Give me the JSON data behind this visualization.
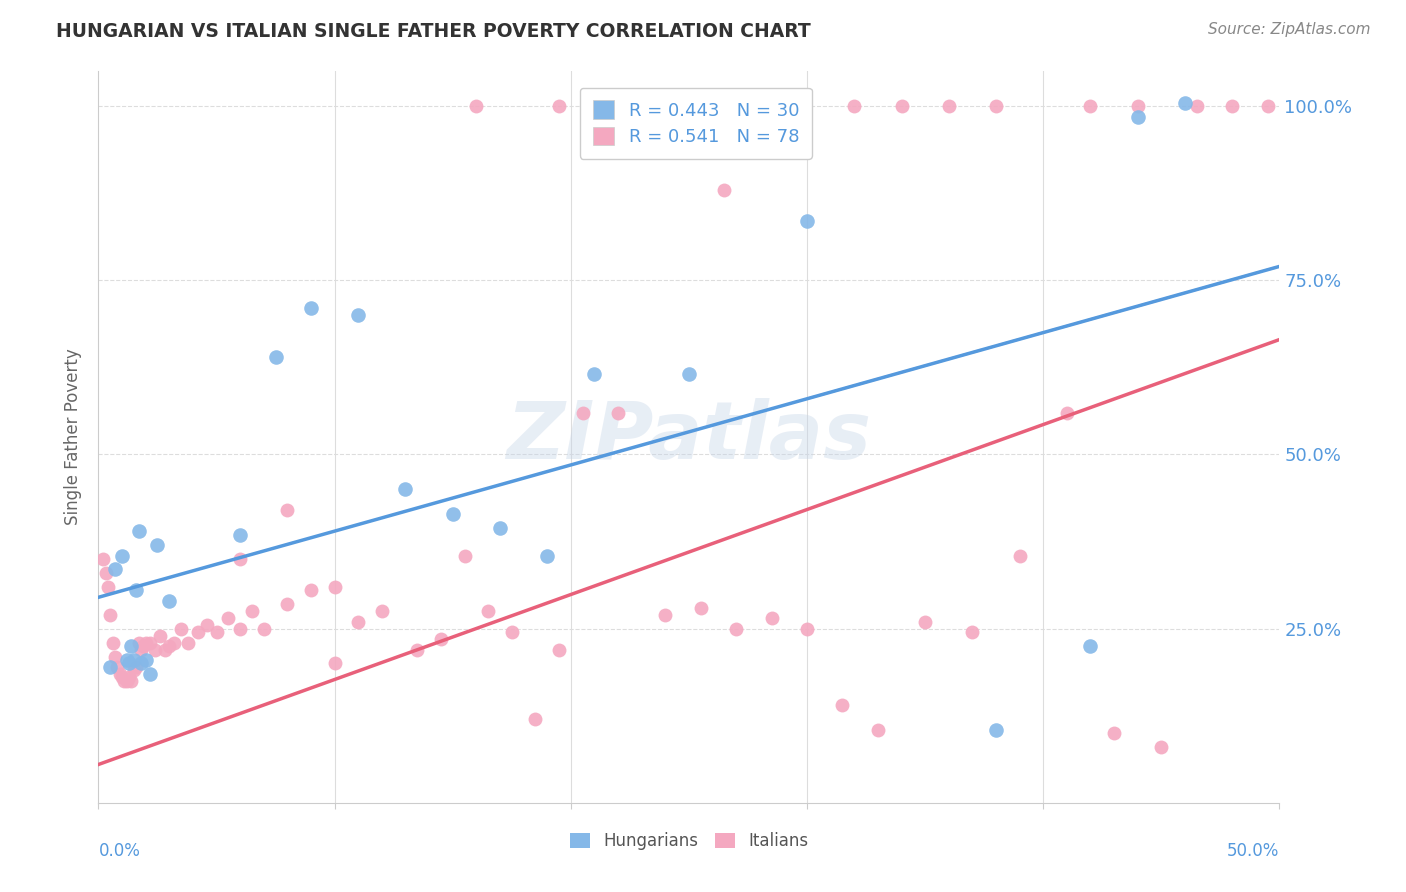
{
  "title": "HUNGARIAN VS ITALIAN SINGLE FATHER POVERTY CORRELATION CHART",
  "source": "Source: ZipAtlas.com",
  "ylabel": "Single Father Poverty",
  "xlim": [
    0.0,
    0.5
  ],
  "ylim": [
    0.0,
    1.05
  ],
  "yticks": [
    0.0,
    0.25,
    0.5,
    0.75,
    1.0
  ],
  "ytick_labels": [
    "",
    "25.0%",
    "50.0%",
    "75.0%",
    "100.0%"
  ],
  "hungarian_color": "#85b8e8",
  "italian_color": "#f4a8c0",
  "trend_hungarian_color": "#5599dd",
  "trend_italian_color": "#e8607a",
  "trend_hungarian_intercept": 0.295,
  "trend_hungarian_slope": 0.95,
  "trend_italian_intercept": 0.055,
  "trend_italian_slope": 1.22,
  "R_hungarian": 0.443,
  "N_hungarian": 30,
  "R_italian": 0.541,
  "N_italian": 78,
  "background_color": "#ffffff",
  "watermark": "ZIPatlas",
  "grid_color": "#dddddd",
  "hungarian_x": [
    0.005,
    0.007,
    0.01,
    0.012,
    0.013,
    0.014,
    0.015,
    0.016,
    0.017,
    0.018,
    0.02,
    0.022,
    0.025,
    0.03,
    0.06,
    0.075,
    0.09,
    0.11,
    0.13,
    0.15,
    0.17,
    0.19,
    0.21,
    0.25,
    0.28,
    0.3,
    0.38,
    0.42,
    0.44,
    0.46
  ],
  "hungarian_y": [
    0.195,
    0.335,
    0.355,
    0.205,
    0.2,
    0.225,
    0.205,
    0.305,
    0.39,
    0.2,
    0.205,
    0.185,
    0.37,
    0.29,
    0.385,
    0.64,
    0.71,
    0.7,
    0.45,
    0.415,
    0.395,
    0.355,
    0.615,
    0.615,
    0.975,
    0.835,
    0.105,
    0.225,
    0.985,
    1.005
  ],
  "italian_x": [
    0.002,
    0.003,
    0.004,
    0.005,
    0.006,
    0.007,
    0.008,
    0.009,
    0.01,
    0.011,
    0.012,
    0.013,
    0.014,
    0.015,
    0.016,
    0.017,
    0.018,
    0.019,
    0.02,
    0.022,
    0.024,
    0.026,
    0.028,
    0.03,
    0.032,
    0.035,
    0.038,
    0.042,
    0.046,
    0.05,
    0.055,
    0.06,
    0.065,
    0.07,
    0.08,
    0.09,
    0.1,
    0.11,
    0.12,
    0.135,
    0.145,
    0.155,
    0.165,
    0.175,
    0.185,
    0.195,
    0.205,
    0.22,
    0.24,
    0.255,
    0.27,
    0.285,
    0.3,
    0.315,
    0.33,
    0.35,
    0.37,
    0.39,
    0.41,
    0.43,
    0.45,
    0.465,
    0.48,
    0.495,
    0.32,
    0.34,
    0.36,
    0.38,
    0.265,
    0.285,
    0.295,
    0.195,
    0.16,
    0.42,
    0.44,
    0.06,
    0.08,
    0.1
  ],
  "italian_y": [
    0.35,
    0.33,
    0.31,
    0.27,
    0.23,
    0.21,
    0.195,
    0.185,
    0.18,
    0.175,
    0.175,
    0.18,
    0.175,
    0.19,
    0.195,
    0.23,
    0.22,
    0.225,
    0.23,
    0.23,
    0.22,
    0.24,
    0.22,
    0.225,
    0.23,
    0.25,
    0.23,
    0.245,
    0.255,
    0.245,
    0.265,
    0.25,
    0.275,
    0.25,
    0.285,
    0.305,
    0.2,
    0.26,
    0.275,
    0.22,
    0.235,
    0.355,
    0.275,
    0.245,
    0.12,
    0.22,
    0.56,
    0.56,
    0.27,
    0.28,
    0.25,
    0.265,
    0.25,
    0.14,
    0.105,
    0.26,
    0.245,
    0.355,
    0.56,
    0.1,
    0.08,
    1.0,
    1.0,
    1.0,
    1.0,
    1.0,
    1.0,
    1.0,
    0.88,
    1.0,
    1.0,
    1.0,
    1.0,
    1.0,
    1.0,
    0.35,
    0.42,
    0.31
  ]
}
